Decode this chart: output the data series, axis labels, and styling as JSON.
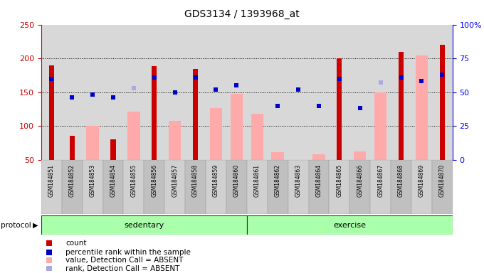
{
  "title": "GDS3134 / 1393968_at",
  "samples": [
    "GSM184851",
    "GSM184852",
    "GSM184853",
    "GSM184854",
    "GSM184855",
    "GSM184856",
    "GSM184857",
    "GSM184858",
    "GSM184859",
    "GSM184860",
    "GSM184861",
    "GSM184862",
    "GSM184863",
    "GSM184864",
    "GSM184865",
    "GSM184866",
    "GSM184867",
    "GSM184868",
    "GSM184869",
    "GSM184870"
  ],
  "count_red": [
    190,
    85,
    null,
    80,
    null,
    188,
    null,
    184,
    null,
    null,
    null,
    null,
    null,
    null,
    200,
    null,
    null,
    210,
    null,
    220
  ],
  "pink_bars": [
    null,
    null,
    100,
    null,
    121,
    null,
    107,
    null,
    126,
    148,
    118,
    61,
    null,
    58,
    null,
    62,
    150,
    null,
    204,
    null
  ],
  "blue_squares_pct": [
    60,
    46,
    48,
    46,
    null,
    61,
    50,
    61,
    52,
    55,
    null,
    40,
    52,
    40,
    60,
    38,
    null,
    61,
    58,
    63
  ],
  "lavender_squares_pct": [
    null,
    null,
    null,
    null,
    53,
    null,
    null,
    null,
    null,
    null,
    null,
    null,
    null,
    null,
    null,
    null,
    57,
    null,
    null,
    null
  ],
  "sedentary_count": 10,
  "ylim_left": [
    50,
    250
  ],
  "ylim_right": [
    0,
    100
  ],
  "left_ticks": [
    50,
    100,
    150,
    200,
    250
  ],
  "right_ticks": [
    0,
    25,
    50,
    75,
    100
  ],
  "right_tick_labels": [
    "0",
    "25",
    "50",
    "75",
    "100%"
  ],
  "bg_color": "#ffffff",
  "plot_bg": "#d8d8d8",
  "green_color": "#90ee90",
  "red_color": "#cc0000",
  "pink_color": "#ffaaaa",
  "blue_color": "#0000cc",
  "lavender_color": "#aaaadd",
  "grid_color": "black"
}
